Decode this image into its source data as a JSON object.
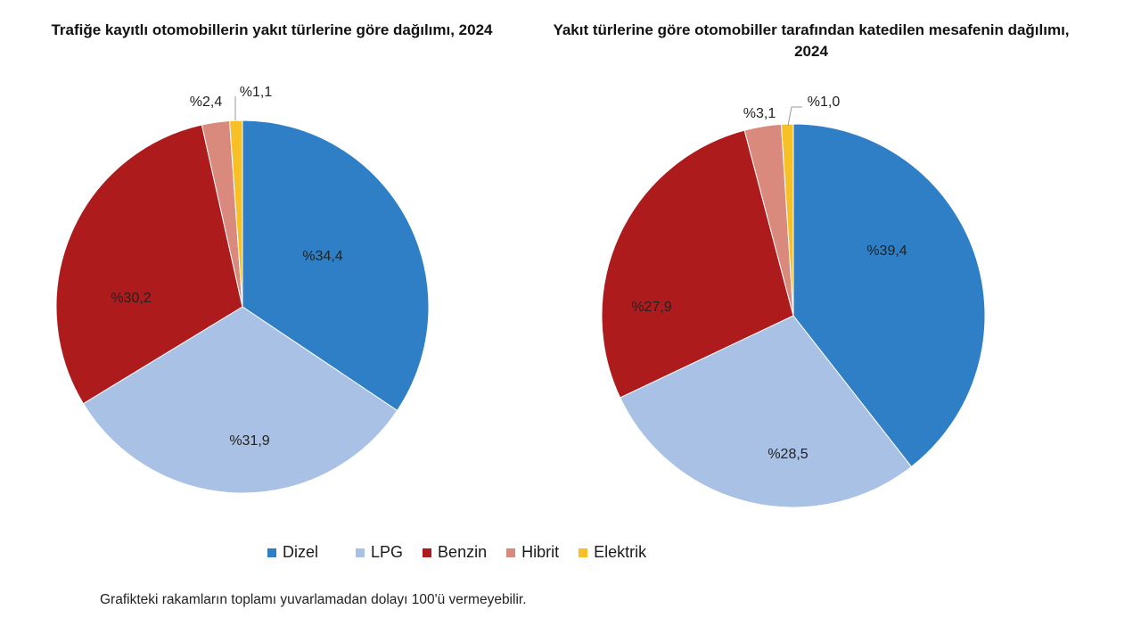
{
  "chart_data": [
    {
      "type": "pie",
      "title": "Trafiğe kayıtlı otomobillerin yakıt türlerine göre dağılımı, 2024",
      "categories": [
        "Dizel",
        "LPG",
        "Benzin",
        "Hibrit",
        "Elektrik"
      ],
      "values": [
        34.4,
        31.9,
        30.2,
        2.4,
        1.1
      ],
      "labels": [
        "%34,4",
        "%31,9",
        "%30,2",
        "%2,4",
        "%1,1"
      ]
    },
    {
      "type": "pie",
      "title": "Yakıt türlerine göre otomobiller tarafından katedilen mesafenin dağılımı, 2024",
      "categories": [
        "Dizel",
        "LPG",
        "Benzin",
        "Hibrit",
        "Elektrik"
      ],
      "values": [
        39.4,
        28.5,
        27.9,
        3.1,
        1.0
      ],
      "labels": [
        "%39,4",
        "%28,5",
        "%27,9",
        "%3,1",
        "%1,0"
      ]
    }
  ],
  "legend": [
    {
      "label": "Dizel",
      "color": "#2e7fc6"
    },
    {
      "label": "LPG",
      "color": "#a9c1e4"
    },
    {
      "label": "Benzin",
      "color": "#ae1b1d"
    },
    {
      "label": "Hibrit",
      "color": "#d98a7c"
    },
    {
      "label": "Elektrik",
      "color": "#f6c026"
    }
  ],
  "footnote": "Grafikteki rakamların toplamı yuvarlamadan dolayı 100'ü vermeyebilir."
}
